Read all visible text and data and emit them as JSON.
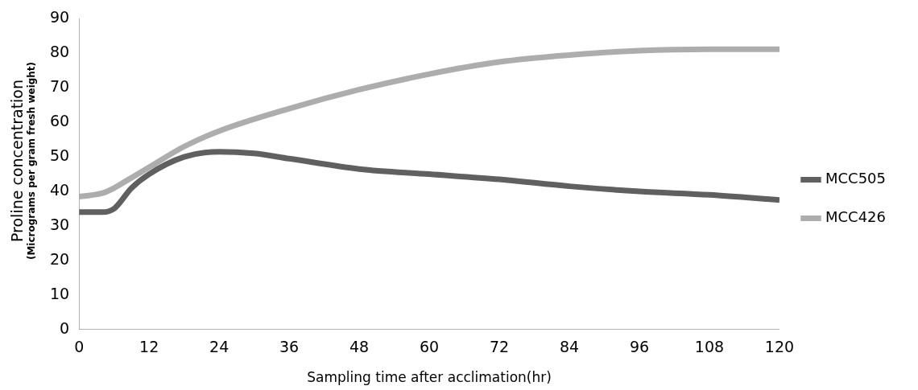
{
  "chart_data": {
    "type": "line",
    "xlabel": "Sampling time after acclimation(hr)",
    "ylabel": "Proline concentration\n(Micrograms per gram fresh weight)",
    "series": [
      {
        "name": "MCC505",
        "color": "#606060",
        "x": [
          0,
          4,
          6,
          9,
          12,
          18,
          24,
          30,
          36,
          48,
          60,
          72,
          84,
          96,
          108,
          120
        ],
        "values": [
          34,
          34,
          35,
          41,
          45,
          50,
          51.5,
          51,
          49.5,
          46.5,
          45,
          43.5,
          41.5,
          40,
          39,
          37.5
        ]
      },
      {
        "name": "MCC426",
        "color": "#adadad",
        "x": [
          0,
          4,
          6,
          9,
          12,
          18,
          24,
          36,
          48,
          60,
          72,
          84,
          96,
          108,
          120
        ],
        "values": [
          38.5,
          39.5,
          41,
          44,
          47,
          53,
          57.5,
          64,
          69.5,
          74,
          77.5,
          79.5,
          80.8,
          81.2,
          81.2
        ]
      }
    ],
    "xlim": [
      0,
      120
    ],
    "xticks": [
      0,
      12,
      24,
      36,
      48,
      60,
      72,
      84,
      96,
      108,
      120
    ],
    "ylim": [
      0,
      90
    ],
    "yticks": [
      0,
      10,
      20,
      30,
      40,
      50,
      60,
      70,
      80,
      90
    ],
    "grid": false,
    "legend": "right",
    "marker": "none",
    "line_style": "solid"
  }
}
